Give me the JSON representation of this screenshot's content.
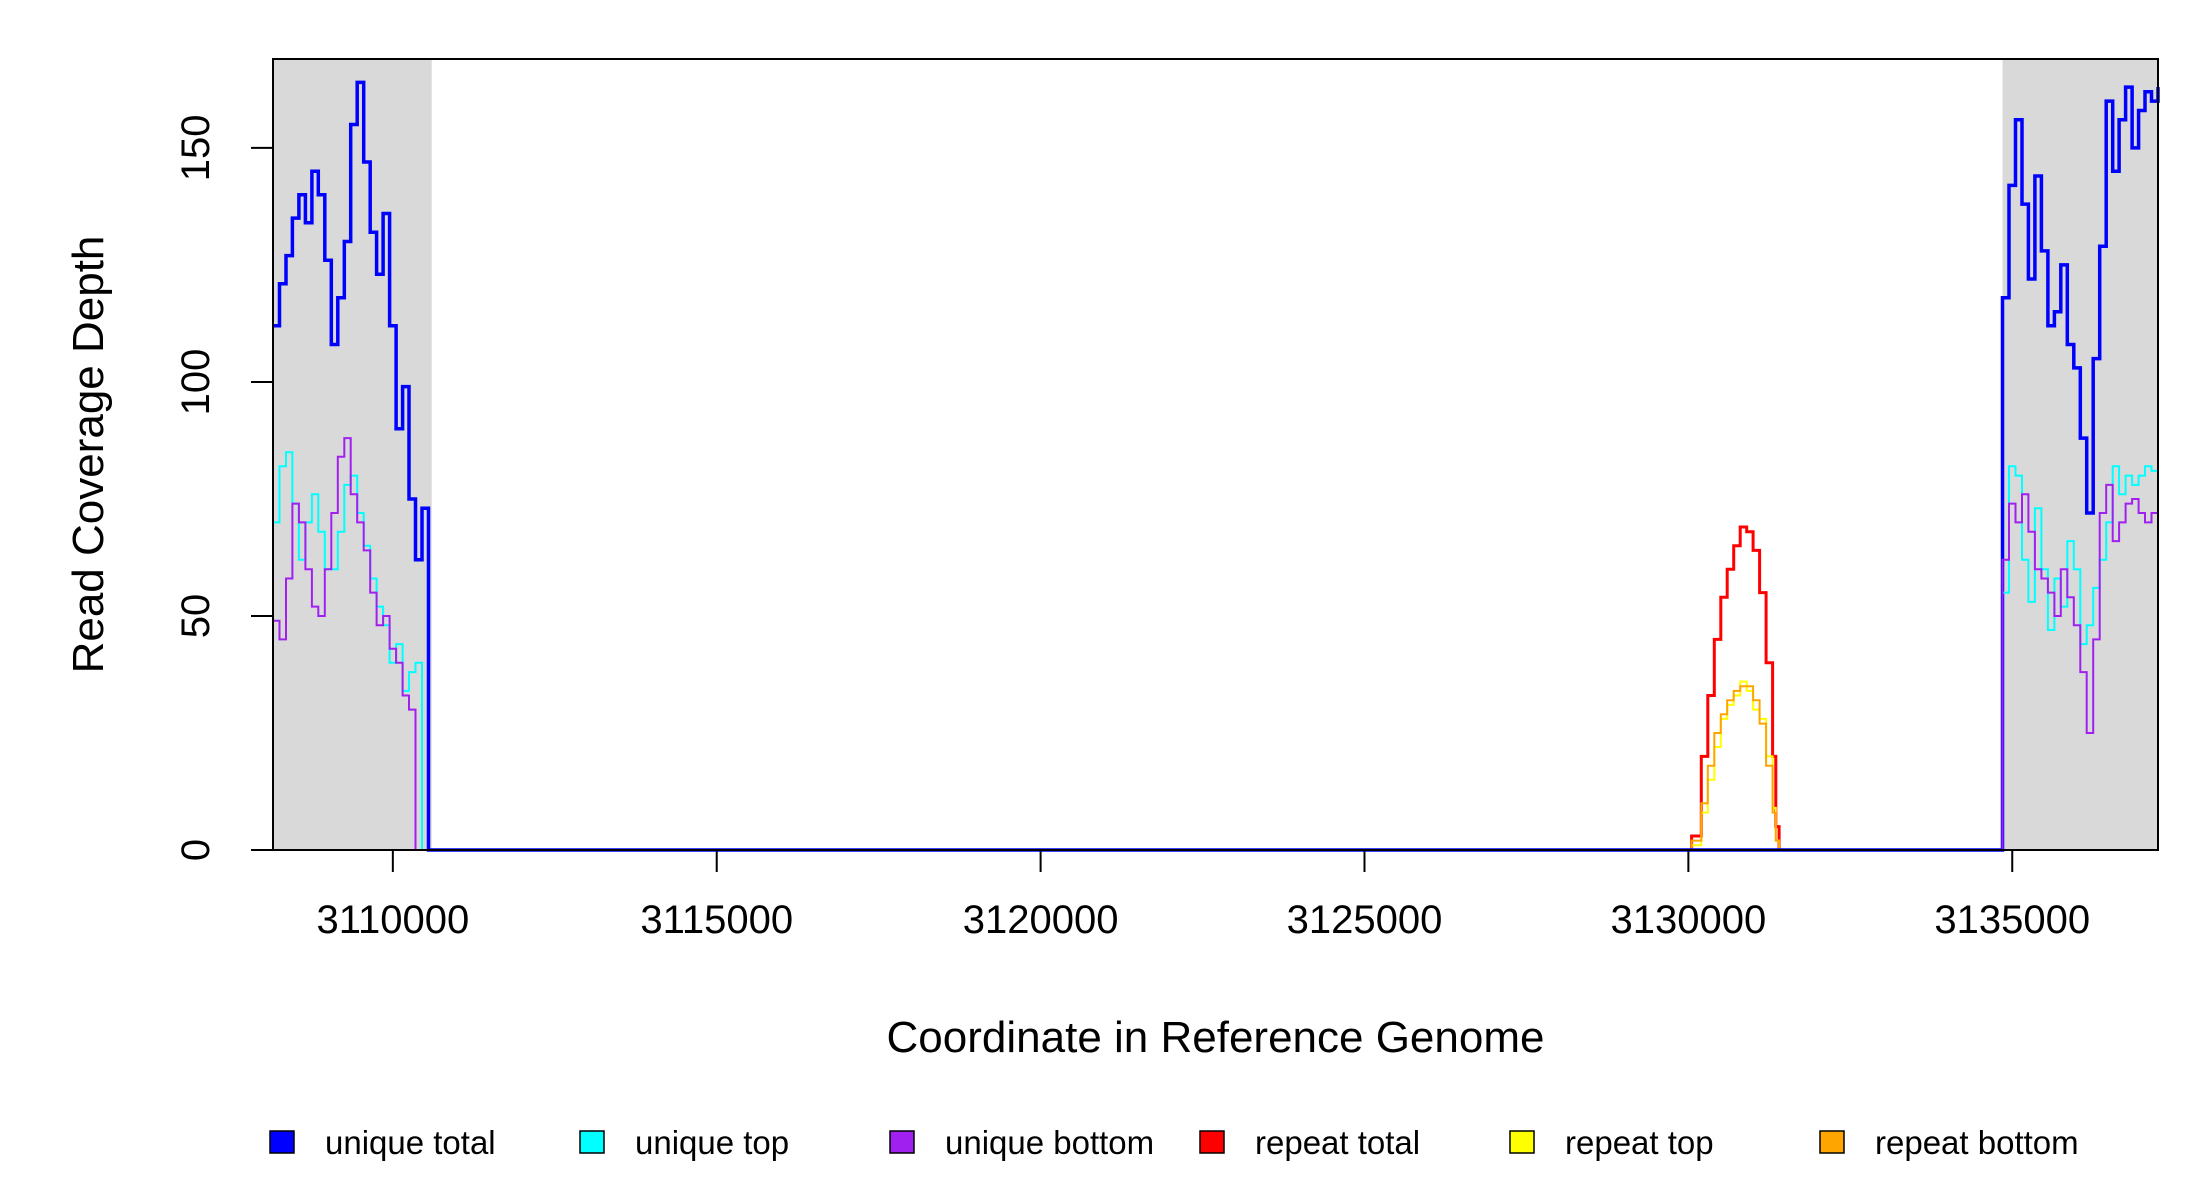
{
  "chart_data": {
    "type": "line",
    "title": "",
    "xlabel": "Coordinate in Reference Genome",
    "ylabel": "Read Coverage Depth",
    "xlim": [
      3108150,
      3137250
    ],
    "ylim": [
      0,
      169
    ],
    "x_ticks": [
      3110000,
      3115000,
      3120000,
      3125000,
      3130000,
      3135000
    ],
    "y_ticks": [
      0,
      50,
      100,
      150
    ],
    "x_tick_labels": [
      "3110000",
      "3115000",
      "3120000",
      "3125000",
      "3130000",
      "3135000"
    ],
    "y_tick_labels": [
      "0",
      "50",
      "100",
      "150"
    ],
    "shaded_regions": [
      {
        "from": 3108150,
        "to": 3110600,
        "color": "#d9d9d9"
      },
      {
        "from": 3134850,
        "to": 3137250,
        "color": "#d9d9d9"
      }
    ],
    "grid": false,
    "legend_position": "bottom",
    "series": [
      {
        "name": "unique total",
        "color": "#0000ff",
        "x": [
          3108150,
          3108250,
          3108350,
          3108450,
          3108550,
          3108650,
          3108750,
          3108850,
          3108950,
          3109050,
          3109150,
          3109250,
          3109350,
          3109450,
          3109550,
          3109650,
          3109750,
          3109850,
          3109950,
          3110050,
          3110150,
          3110250,
          3110350,
          3110450,
          3110550,
          3110600,
          3110650,
          3115000,
          3120000,
          3125000,
          3130000,
          3134800,
          3134850,
          3134950,
          3135050,
          3135150,
          3135250,
          3135350,
          3135450,
          3135550,
          3135650,
          3135750,
          3135850,
          3135950,
          3136050,
          3136150,
          3136250,
          3136350,
          3136450,
          3136550,
          3136650,
          3136750,
          3136850,
          3136950,
          3137050,
          3137150,
          3137250
        ],
        "y": [
          112,
          121,
          127,
          135,
          140,
          134,
          145,
          140,
          126,
          108,
          118,
          130,
          155,
          164,
          147,
          132,
          123,
          136,
          112,
          90,
          99,
          75,
          62,
          73,
          0,
          0,
          0,
          0,
          0,
          0,
          0,
          0,
          118,
          142,
          156,
          138,
          122,
          144,
          128,
          112,
          115,
          125,
          108,
          103,
          88,
          72,
          105,
          129,
          160,
          145,
          156,
          163,
          150,
          158,
          162,
          160,
          163
        ]
      },
      {
        "name": "unique top",
        "color": "#00ffff",
        "x": [
          3108150,
          3108250,
          3108350,
          3108450,
          3108550,
          3108650,
          3108750,
          3108850,
          3108950,
          3109050,
          3109150,
          3109250,
          3109350,
          3109450,
          3109550,
          3109650,
          3109750,
          3109850,
          3109950,
          3110050,
          3110150,
          3110250,
          3110350,
          3110450,
          3110550,
          3110600,
          3110650,
          3115000,
          3120000,
          3125000,
          3130000,
          3134800,
          3134850,
          3134950,
          3135050,
          3135150,
          3135250,
          3135350,
          3135450,
          3135550,
          3135650,
          3135750,
          3135850,
          3135950,
          3136050,
          3136150,
          3136250,
          3136350,
          3136450,
          3136550,
          3136650,
          3136750,
          3136850,
          3136950,
          3137050,
          3137150,
          3137250
        ],
        "y": [
          70,
          82,
          85,
          74,
          62,
          70,
          76,
          68,
          60,
          60,
          68,
          78,
          80,
          72,
          65,
          58,
          52,
          48,
          40,
          44,
          34,
          38,
          40,
          0,
          0,
          0,
          0,
          0,
          0,
          0,
          0,
          0,
          55,
          82,
          80,
          62,
          53,
          73,
          60,
          47,
          58,
          52,
          66,
          60,
          44,
          48,
          56,
          62,
          70,
          82,
          76,
          80,
          78,
          80,
          82,
          81,
          80
        ]
      },
      {
        "name": "unique bottom",
        "color": "#a020f0",
        "x": [
          3108150,
          3108250,
          3108350,
          3108450,
          3108550,
          3108650,
          3108750,
          3108850,
          3108950,
          3109050,
          3109150,
          3109250,
          3109350,
          3109450,
          3109550,
          3109650,
          3109750,
          3109850,
          3109950,
          3110050,
          3110150,
          3110250,
          3110350,
          3110450,
          3110550,
          3110600,
          3110650,
          3115000,
          3120000,
          3125000,
          3130000,
          3134800,
          3134850,
          3134950,
          3135050,
          3135150,
          3135250,
          3135350,
          3135450,
          3135550,
          3135650,
          3135750,
          3135850,
          3135950,
          3136050,
          3136150,
          3136250,
          3136350,
          3136450,
          3136550,
          3136650,
          3136750,
          3136850,
          3136950,
          3137050,
          3137150,
          3137250
        ],
        "y": [
          49,
          45,
          58,
          74,
          70,
          60,
          52,
          50,
          60,
          72,
          84,
          88,
          76,
          70,
          64,
          55,
          48,
          50,
          43,
          40,
          33,
          30,
          0,
          0,
          0,
          0,
          0,
          0,
          0,
          0,
          0,
          0,
          62,
          74,
          70,
          76,
          68,
          60,
          58,
          55,
          50,
          60,
          54,
          48,
          38,
          25,
          45,
          72,
          78,
          66,
          70,
          74,
          75,
          72,
          70,
          72,
          74
        ]
      },
      {
        "name": "repeat total",
        "color": "#ff0000",
        "x": [
          3129900,
          3130050,
          3130200,
          3130300,
          3130400,
          3130500,
          3130600,
          3130700,
          3130800,
          3130900,
          3131000,
          3131100,
          3131200,
          3131300,
          3131350,
          3131400,
          3131450
        ],
        "y": [
          0,
          3,
          20,
          33,
          45,
          54,
          60,
          65,
          69,
          68,
          64,
          55,
          40,
          20,
          5,
          0,
          0
        ]
      },
      {
        "name": "repeat top",
        "color": "#ffff00",
        "x": [
          3129900,
          3130050,
          3130200,
          3130300,
          3130400,
          3130500,
          3130600,
          3130700,
          3130800,
          3130900,
          3131000,
          3131100,
          3131200,
          3131300,
          3131350,
          3131400,
          3131450
        ],
        "y": [
          0,
          1,
          8,
          15,
          22,
          28,
          31,
          33,
          36,
          34,
          30,
          28,
          20,
          9,
          2,
          0,
          0
        ]
      },
      {
        "name": "repeat bottom",
        "color": "#ffa500",
        "x": [
          3129900,
          3130050,
          3130200,
          3130300,
          3130400,
          3130500,
          3130600,
          3130700,
          3130800,
          3130900,
          3131000,
          3131100,
          3131200,
          3131300,
          3131350,
          3131400,
          3131450
        ],
        "y": [
          0,
          2,
          10,
          18,
          25,
          29,
          32,
          34,
          35,
          35,
          32,
          27,
          18,
          8,
          2,
          0,
          0
        ]
      }
    ]
  }
}
